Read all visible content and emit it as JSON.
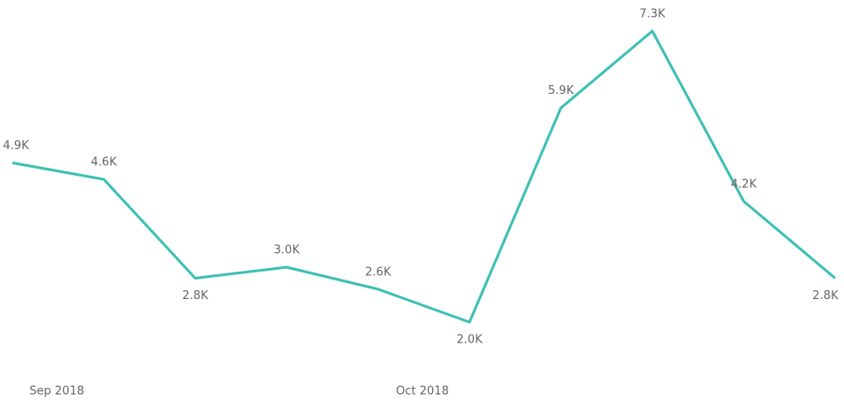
{
  "chart_data": {
    "type": "line",
    "categories": [
      "Sep 2018",
      null,
      null,
      null,
      "Oct 2018",
      null,
      null,
      null,
      null,
      null
    ],
    "series": [
      {
        "color": "#3dbfb6",
        "values": [
          4900,
          4600,
          2800,
          3000,
          2600,
          2000,
          5900,
          7300,
          4200,
          2800
        ],
        "value_labels": [
          "4.9K",
          "4.6K",
          "2.8K",
          "3.0K",
          "2.6K",
          "2.0K",
          "5.9K",
          "7.3K",
          "4.2K",
          "2.8K"
        ]
      }
    ]
  }
}
